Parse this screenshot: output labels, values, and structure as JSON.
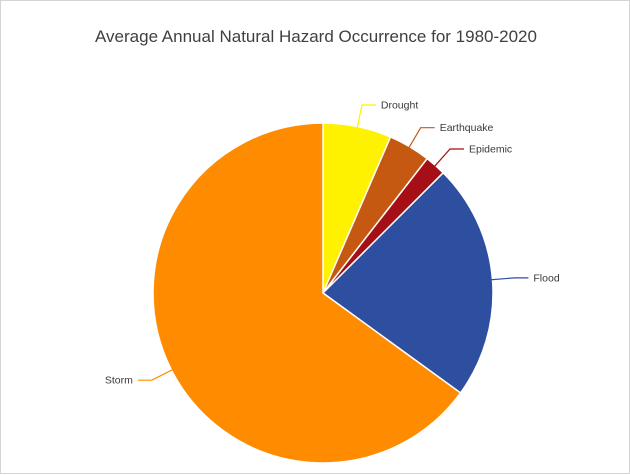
{
  "chart_data": {
    "type": "pie",
    "title": "Average Annual Natural Hazard Occurrence for 1980-2020",
    "slices": [
      {
        "label": "Drought",
        "value": 6.5,
        "color": "#FFF200"
      },
      {
        "label": "Earthquake",
        "value": 4.0,
        "color": "#C65911"
      },
      {
        "label": "Epidemic",
        "value": 2.0,
        "color": "#A50F15"
      },
      {
        "label": "Flood",
        "value": 22.5,
        "color": "#2E4EA0"
      },
      {
        "label": "Storm",
        "value": 65.0,
        "color": "#FF8C00"
      }
    ],
    "start_angle_deg": 0,
    "direction": "clockwise",
    "legend": "none",
    "labels": "outside-with-leader-lines"
  }
}
